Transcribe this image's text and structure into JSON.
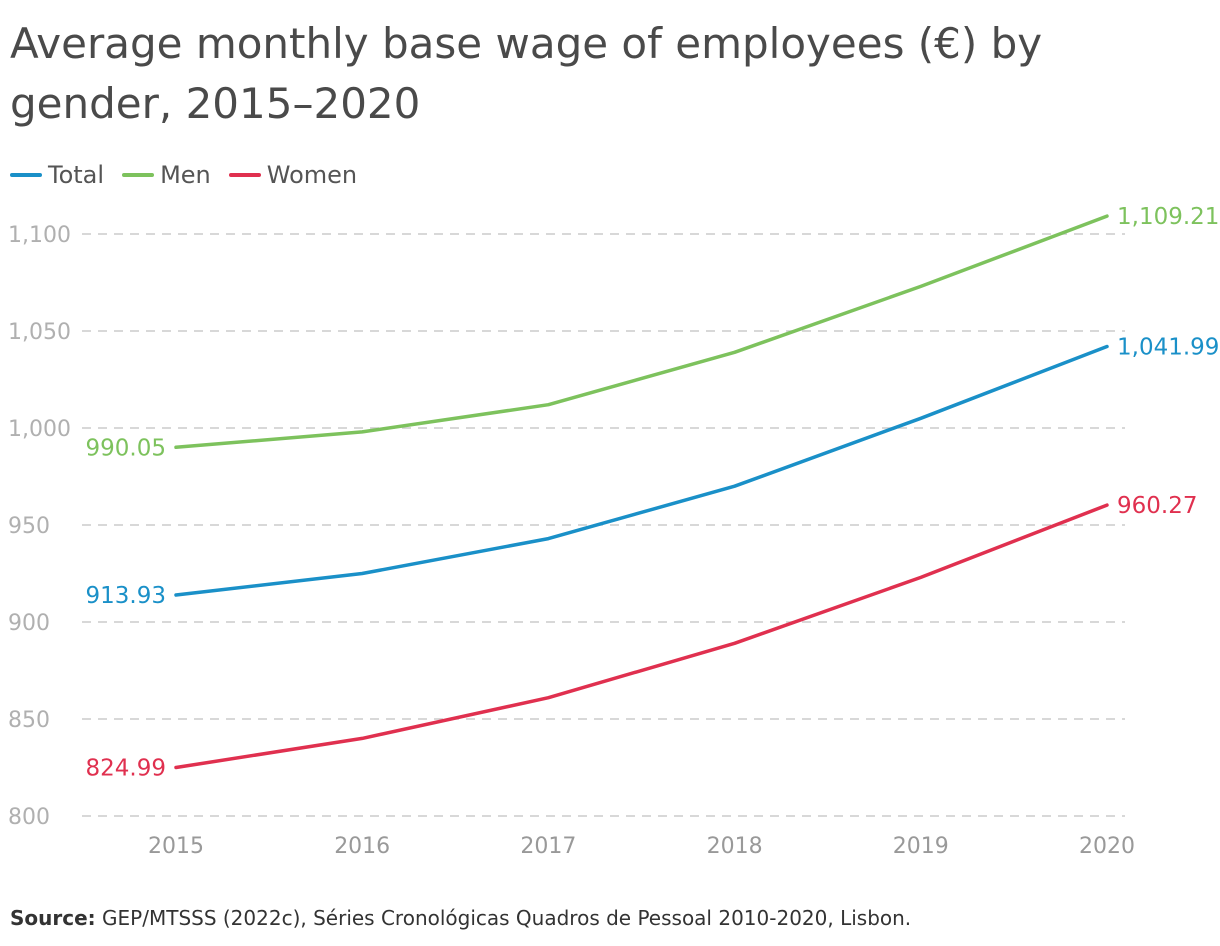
{
  "title": "Average monthly base wage of employees (€) by gender, 2015–2020",
  "legend": [
    {
      "name": "Total",
      "color": "#1a90c8"
    },
    {
      "name": "Men",
      "color": "#7dc25d"
    },
    {
      "name": "Women",
      "color": "#e0304f"
    }
  ],
  "source": {
    "label": "Source:",
    "text": "GEP/MTSSS (2022c), Séries Cronológicas Quadros de Pessoal 2010-2020, Lisbon."
  },
  "chart_data": {
    "type": "line",
    "title": "Average monthly base wage of employees (€) by gender, 2015–2020",
    "xlabel": "",
    "ylabel": "",
    "categories": [
      "2015",
      "2016",
      "2017",
      "2018",
      "2019",
      "2020"
    ],
    "ylim": [
      800,
      1110
    ],
    "yticks": [
      800,
      850,
      900,
      950,
      1000,
      1050,
      1100
    ],
    "ytick_labels": [
      "800",
      "850",
      "900",
      "950",
      "1,000",
      "1,050",
      "1,100"
    ],
    "grid": true,
    "legend_position": "top-left",
    "series": [
      {
        "name": "Total",
        "color": "#1a90c8",
        "values": [
          913.93,
          925,
          943,
          970,
          1005,
          1041.99
        ],
        "start_label": "913.93",
        "end_label": "1,041.99"
      },
      {
        "name": "Men",
        "color": "#7dc25d",
        "values": [
          990.05,
          998,
          1012,
          1039,
          1073,
          1109.21
        ],
        "start_label": "990.05",
        "end_label": "1,109.21"
      },
      {
        "name": "Women",
        "color": "#e0304f",
        "values": [
          824.99,
          840,
          861,
          889,
          923,
          960.27
        ],
        "start_label": "824.99",
        "end_label": "960.27"
      }
    ]
  }
}
